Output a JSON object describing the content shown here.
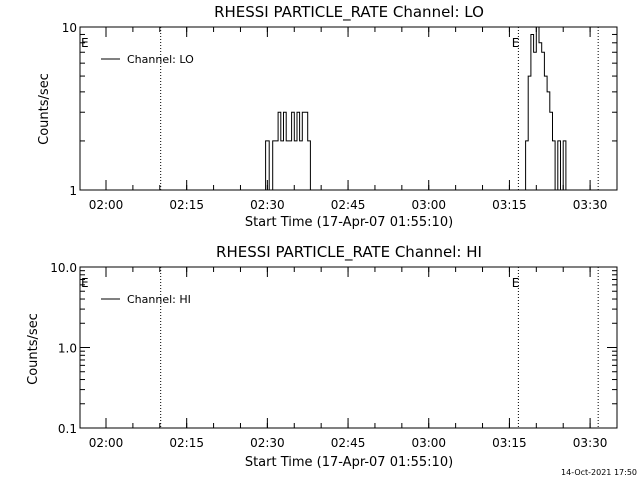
{
  "chart_data": [
    {
      "type": "line",
      "title": "RHESSI PARTICLE_RATE Channel: LO",
      "xlabel": "Start Time (17-Apr-07 01:55:10)",
      "ylabel": "Counts/sec",
      "yscale": "log",
      "ylim": [
        1,
        10
      ],
      "xlim": [
        "01:55:10",
        "03:35:00"
      ],
      "x_ticks": [
        "02:00",
        "02:15",
        "02:30",
        "02:45",
        "03:00",
        "03:15",
        "03:30"
      ],
      "y_ticks": [
        "1",
        "10"
      ],
      "grid": false,
      "legend_position": "top-left",
      "series": [
        {
          "name": "Channel: LO",
          "x": [
            "02:29:30",
            "02:29:40",
            "02:30:00",
            "02:30:20",
            "02:30:30",
            "02:31:00",
            "02:31:30",
            "02:32:00",
            "02:32:30",
            "02:33:00",
            "02:33:30",
            "02:34:00",
            "02:34:30",
            "02:35:00",
            "02:35:30",
            "02:36:00",
            "02:36:30",
            "02:37:00",
            "02:37:30",
            "02:38:00",
            "02:38:30",
            "02:39:00",
            "02:39:30",
            "02:40:00",
            "03:17:30",
            "03:18:00",
            "03:18:30",
            "03:19:00",
            "03:19:30",
            "03:20:00",
            "03:20:30",
            "03:21:00",
            "03:21:30",
            "03:22:00",
            "03:22:30",
            "03:23:00",
            "03:23:30",
            "03:24:00",
            "03:24:30",
            "03:25:00",
            "03:25:30",
            "03:26:00"
          ],
          "values": [
            1,
            2,
            2,
            1,
            1,
            2,
            2,
            3,
            2,
            3,
            2,
            2,
            3,
            2,
            3,
            2,
            3,
            3,
            2,
            1,
            1,
            1,
            1,
            1,
            1,
            2,
            5,
            9,
            7,
            10,
            8,
            7,
            5,
            4,
            3,
            2,
            1,
            2,
            1,
            2,
            1,
            1
          ]
        }
      ],
      "markers": [
        {
          "label": "",
          "x": "02:10:10"
        },
        {
          "label": "E",
          "x": "03:16:40"
        },
        {
          "label": "",
          "x": "03:31:30"
        }
      ],
      "edge_labels": [
        "E"
      ]
    },
    {
      "type": "line",
      "title": "RHESSI PARTICLE_RATE Channel: HI",
      "xlabel": "Start Time (17-Apr-07 01:55:10)",
      "ylabel": "Counts/sec",
      "yscale": "log",
      "ylim": [
        0.1,
        10
      ],
      "xlim": [
        "01:55:10",
        "03:35:00"
      ],
      "x_ticks": [
        "02:00",
        "02:15",
        "02:30",
        "02:45",
        "03:00",
        "03:15",
        "03:30"
      ],
      "y_ticks": [
        "0.1",
        "1.0",
        "10.0"
      ],
      "grid": false,
      "legend_position": "top-left",
      "series": [
        {
          "name": "Channel: HI",
          "x": [],
          "values": []
        }
      ],
      "markers": [
        {
          "label": "",
          "x": "02:10:10"
        },
        {
          "label": "E",
          "x": "03:16:40"
        },
        {
          "label": "",
          "x": "03:31:30"
        }
      ],
      "edge_labels": [
        "E"
      ]
    }
  ],
  "footer": {
    "timestamp": "14-Oct-2021 17:50"
  }
}
